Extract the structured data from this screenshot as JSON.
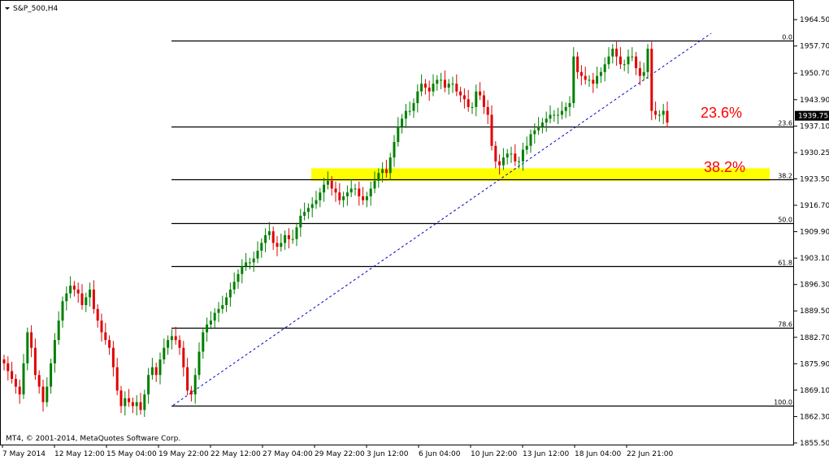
{
  "window": {
    "title": "S&P_500,H4",
    "copyright": "MT4, © 2001-2014, MetaQuotes Software Corp."
  },
  "colors": {
    "bull": "#008000",
    "bear": "#e00000",
    "fib": "#000000",
    "trendline": "#0000cc",
    "zone": "#ffff00",
    "price_tag": "#000000",
    "label": "#ff0000"
  },
  "chart_data": {
    "type": "candlestick",
    "symbol": "S&P_500",
    "timeframe": "H4",
    "ylim": [
      1855.5,
      1966.0
    ],
    "y_ticks": [
      "1964.50",
      "1957.70",
      "1950.70",
      "1943.90",
      "1937.10",
      "1930.25",
      "1923.50",
      "1916.70",
      "1909.90",
      "1903.10",
      "1896.30",
      "1889.50",
      "1882.70",
      "1875.90",
      "1869.10",
      "1862.30",
      "1855.50"
    ],
    "x_ticks": [
      "7 May 2014",
      "12 May 12:00",
      "15 May 04:00",
      "19 May 22:00",
      "22 May 12:00",
      "27 May 04:00",
      "29 May 22:00",
      "3 Jun 12:00",
      "6 Jun 04:00",
      "10 Jun 22:00",
      "13 Jun 12:00",
      "18 Jun 04:00",
      "22 Jun 21:00"
    ],
    "current_price": "1939.75",
    "fibonacci": {
      "high": 1959.1,
      "low": 1865.2,
      "levels": [
        {
          "label": "0.0",
          "value": 1959.1
        },
        {
          "label": "23.6",
          "value": 1936.9
        },
        {
          "label": "38.2",
          "value": 1923.3
        },
        {
          "label": "50.0",
          "value": 1912.1
        },
        {
          "label": "61.8",
          "value": 1901.0
        },
        {
          "label": "78.6",
          "value": 1885.2
        },
        {
          "label": "100.0",
          "value": 1865.2
        }
      ]
    },
    "zone": {
      "from": 1923.6,
      "to": 1925.6
    },
    "annotations": [
      "23.6%",
      "38.2%"
    ],
    "trendline": {
      "from": 1865.2,
      "to": 1959.1
    },
    "closes": [
      1876,
      1874,
      1872,
      1870,
      1868,
      1876,
      1884,
      1880,
      1873,
      1870,
      1866,
      1870,
      1876,
      1882,
      1887,
      1892,
      1894,
      1896,
      1895,
      1894,
      1891,
      1893,
      1895,
      1890,
      1887,
      1884,
      1882,
      1880,
      1875,
      1869,
      1865,
      1867,
      1866,
      1865,
      1866,
      1864,
      1868,
      1873,
      1875,
      1873,
      1877,
      1880,
      1882,
      1883,
      1882,
      1880,
      1875,
      1869,
      1868,
      1873,
      1879,
      1884,
      1886,
      1887,
      1889,
      1890,
      1891,
      1893,
      1895,
      1897,
      1899,
      1901,
      1902,
      1902,
      1903,
      1905,
      1907,
      1909,
      1910,
      1907,
      1906,
      1907,
      1909,
      1908,
      1908,
      1911,
      1914,
      1915,
      1916,
      1917,
      1918,
      1920,
      1922,
      1923,
      1921,
      1920,
      1918,
      1919,
      1920,
      1921,
      1921,
      1919,
      1918,
      1919,
      1921,
      1923,
      1925,
      1926,
      1925,
      1929,
      1933,
      1937,
      1939,
      1941,
      1941,
      1943,
      1946,
      1948,
      1947,
      1946,
      1948,
      1949,
      1949,
      1947,
      1948,
      1948,
      1946,
      1945,
      1944,
      1942,
      1942,
      1946,
      1945,
      1942,
      1940,
      1932,
      1928,
      1927,
      1929,
      1930,
      1930,
      1928,
      1928,
      1931,
      1932,
      1935,
      1936,
      1937,
      1938,
      1939,
      1940,
      1940,
      1940,
      1941,
      1942,
      1943,
      1955,
      1951,
      1950,
      1949,
      1949,
      1948,
      1950,
      1951,
      1953,
      1955,
      1957,
      1955,
      1953,
      1953,
      1955,
      1955,
      1952,
      1950,
      1951,
      1957,
      1941,
      1940,
      1940,
      1941,
      1938
    ]
  }
}
